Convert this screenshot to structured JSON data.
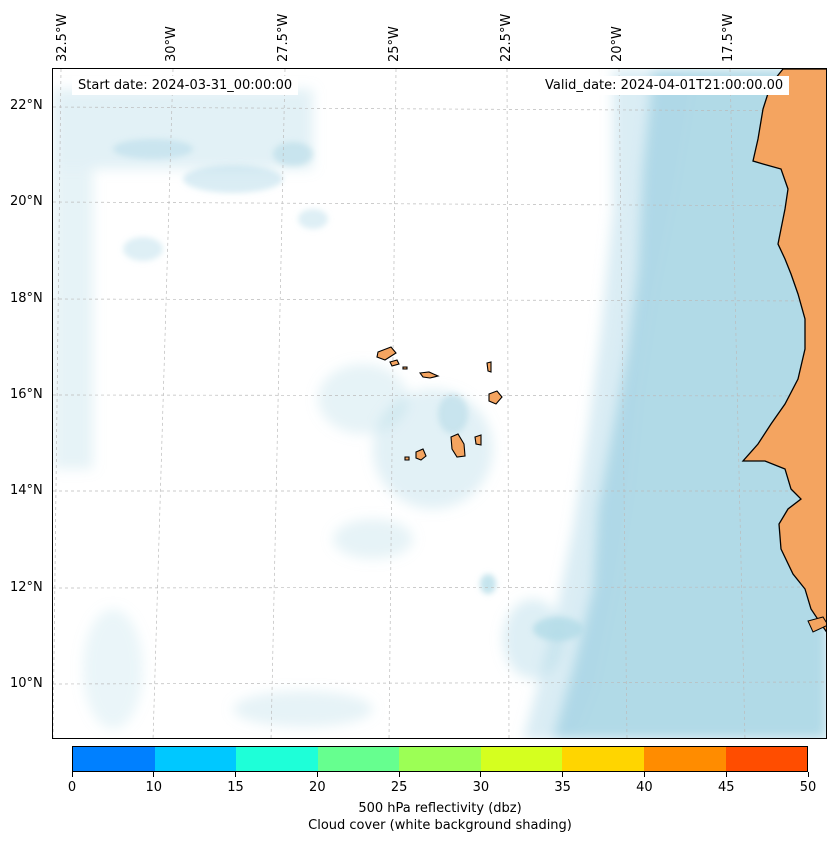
{
  "map": {
    "start_date_text": "Start date: 2024-03-31_00:00:00",
    "valid_date_text": "Valid_date: 2024-04-01T21:00:00.00",
    "lon_labels": [
      "32.5°W",
      "30°W",
      "27.5°W",
      "25°W",
      "22.5°W",
      "20°W",
      "17.5°W"
    ],
    "lat_labels": [
      "22°N",
      "20°N",
      "18°N",
      "16°N",
      "14°N",
      "12°N",
      "10°N"
    ],
    "colors": {
      "ocean_cloud": "#add8e6",
      "land": "#f4a460",
      "coastline": "#000000",
      "gridline": "#bbbbbb"
    }
  },
  "colorbar": {
    "ticks": [
      "0",
      "10",
      "15",
      "20",
      "25",
      "30",
      "35",
      "40",
      "45",
      "50"
    ],
    "colors": [
      "#0080ff",
      "#00c8ff",
      "#1effd8",
      "#66ff8f",
      "#9cff55",
      "#d5ff1f",
      "#ffd500",
      "#ff8c00",
      "#ff4d00"
    ],
    "label_line1": "500 hPa reflectivity (dbz)",
    "label_line2": "Cloud cover (white background shading)"
  }
}
